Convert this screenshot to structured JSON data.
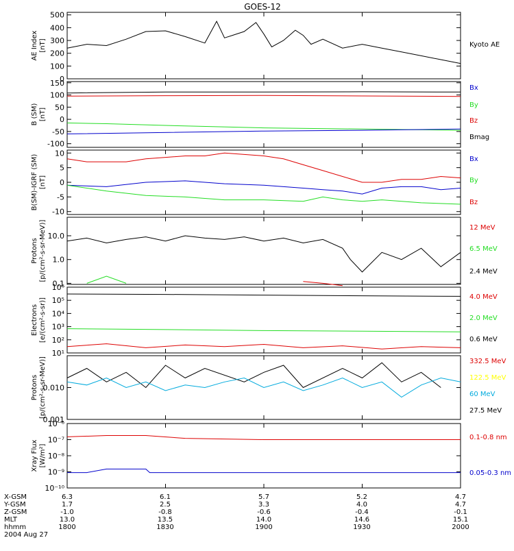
{
  "title": "GOES-12",
  "colors": {
    "black": "#000000",
    "red": "#dd0000",
    "green": "#22dd22",
    "blue": "#0000cc",
    "yellow": "#ffff00",
    "cyan": "#00aadd"
  },
  "x_axis": {
    "ticks": [
      "1800",
      "1830",
      "1900",
      "1930",
      "2000"
    ],
    "ephemeris": [
      {
        "label": "X-GSM",
        "values": [
          "6.3",
          "6.1",
          "5.7",
          "5.2",
          "4.7"
        ]
      },
      {
        "label": "Y-GSM",
        "values": [
          "1.7",
          "2.5",
          "3.3",
          "4.0",
          "4.7"
        ]
      },
      {
        "label": "Z-GSM",
        "values": [
          "-1.0",
          "-0.8",
          "-0.6",
          "-0.4",
          "-0.1"
        ]
      },
      {
        "label": "MLT",
        "values": [
          "13.0",
          "13.5",
          "14.0",
          "14.6",
          "15.1"
        ]
      },
      {
        "label": "hhmm",
        "values": [
          "1800",
          "1830",
          "1900",
          "1930",
          "2000"
        ]
      }
    ],
    "date": "2004 Aug 27"
  },
  "chart_data": [
    {
      "type": "line",
      "ylabel_lines": [
        "AE Index",
        "[nT]"
      ],
      "scale": "linear",
      "ylim": [
        0,
        520
      ],
      "yticks": [
        "0",
        "100",
        "200",
        "300",
        "400",
        "500"
      ],
      "ytick_values": [
        0,
        100,
        200,
        300,
        400,
        500
      ],
      "legend": [
        {
          "label": "Kyoto AE",
          "color": "#000000"
        }
      ],
      "series": [
        {
          "name": "Kyoto AE",
          "color": "#000000",
          "x": [
            0,
            0.05,
            0.1,
            0.15,
            0.2,
            0.25,
            0.3,
            0.35,
            0.38,
            0.4,
            0.42,
            0.45,
            0.48,
            0.5,
            0.52,
            0.55,
            0.58,
            0.6,
            0.62,
            0.65,
            0.7,
            0.75,
            0.8,
            0.85,
            0.9,
            0.95,
            1
          ],
          "y": [
            240,
            270,
            260,
            310,
            370,
            375,
            330,
            280,
            450,
            320,
            340,
            370,
            440,
            350,
            250,
            300,
            380,
            340,
            270,
            310,
            240,
            270,
            240,
            210,
            180,
            150,
            120
          ]
        }
      ]
    },
    {
      "type": "line",
      "ylabel_lines": [
        "B (SM)",
        "[nT]"
      ],
      "scale": "linear",
      "ylim": [
        -115,
        155
      ],
      "yticks": [
        "-100",
        "-50",
        "0",
        "50",
        "100",
        "150"
      ],
      "ytick_values": [
        -100,
        -50,
        0,
        50,
        100,
        150
      ],
      "legend": [
        {
          "label": "Bx",
          "color": "#0000cc"
        },
        {
          "label": "By",
          "color": "#22dd22"
        },
        {
          "label": "Bz",
          "color": "#dd0000"
        },
        {
          "label": "Bmag",
          "color": "#000000"
        }
      ],
      "series": [
        {
          "name": "Bmag",
          "color": "#000000",
          "x": [
            0,
            0.25,
            0.5,
            0.75,
            1
          ],
          "y": [
            108,
            112,
            112,
            113,
            112
          ]
        },
        {
          "name": "Bz",
          "color": "#dd0000",
          "x": [
            0,
            0.25,
            0.5,
            0.75,
            1
          ],
          "y": [
            95,
            97,
            98,
            96,
            94
          ]
        },
        {
          "name": "By",
          "color": "#22dd22",
          "x": [
            0,
            0.1,
            0.25,
            0.5,
            0.75,
            1
          ],
          "y": [
            -15,
            -18,
            -25,
            -35,
            -40,
            -45
          ]
        },
        {
          "name": "Bx",
          "color": "#0000cc",
          "x": [
            0,
            0.2,
            0.5,
            0.75,
            1
          ],
          "y": [
            -60,
            -55,
            -48,
            -45,
            -40
          ]
        }
      ]
    },
    {
      "type": "line",
      "ylabel_lines": [
        "B(SM)-IGRF (SM)",
        "[nT]"
      ],
      "scale": "linear",
      "ylim": [
        -11,
        11
      ],
      "yticks": [
        "-10",
        "-5",
        "0",
        "5",
        "10"
      ],
      "ytick_values": [
        -10,
        -5,
        0,
        5,
        10
      ],
      "legend": [
        {
          "label": "Bx",
          "color": "#0000cc"
        },
        {
          "label": "By",
          "color": "#22dd22"
        },
        {
          "label": "Bz",
          "color": "#dd0000"
        }
      ],
      "series": [
        {
          "name": "Bz",
          "color": "#dd0000",
          "x": [
            0,
            0.05,
            0.15,
            0.2,
            0.3,
            0.35,
            0.4,
            0.5,
            0.55,
            0.6,
            0.65,
            0.7,
            0.75,
            0.8,
            0.85,
            0.9,
            0.95,
            1
          ],
          "y": [
            8,
            7,
            7,
            8,
            9,
            9,
            10,
            9,
            8,
            6,
            4,
            2,
            0,
            0,
            1,
            1,
            2,
            1.5
          ]
        },
        {
          "name": "Bx",
          "color": "#0000cc",
          "x": [
            0,
            0.1,
            0.2,
            0.3,
            0.4,
            0.5,
            0.6,
            0.65,
            0.7,
            0.75,
            0.8,
            0.85,
            0.9,
            0.95,
            1
          ],
          "y": [
            -1,
            -1.5,
            0,
            0.5,
            -0.5,
            -1,
            -2,
            -2.5,
            -3,
            -4,
            -2,
            -1.5,
            -1.5,
            -2.5,
            -2
          ]
        },
        {
          "name": "By",
          "color": "#22dd22",
          "x": [
            0,
            0.05,
            0.1,
            0.2,
            0.3,
            0.4,
            0.5,
            0.6,
            0.65,
            0.7,
            0.75,
            0.8,
            0.9,
            1
          ],
          "y": [
            -1,
            -2,
            -3,
            -4.5,
            -5,
            -6,
            -6,
            -6.5,
            -5,
            -6,
            -6.5,
            -6,
            -7,
            -7.5
          ]
        }
      ]
    },
    {
      "type": "line",
      "ylabel_lines": [
        "Protons",
        "[p/(cm²-s-sr-MeV)]"
      ],
      "scale": "log",
      "ylim": [
        0.09,
        60
      ],
      "yticks": [
        "0.1",
        "1.0",
        "10.0"
      ],
      "ytick_values": [
        0.1,
        1,
        10
      ],
      "legend": [
        {
          "label": "12 MeV",
          "color": "#dd0000"
        },
        {
          "label": "6.5 MeV",
          "color": "#22dd22"
        },
        {
          "label": "2.4 MeV",
          "color": "#000000"
        }
      ],
      "series": [
        {
          "name": "2.4 MeV",
          "color": "#000000",
          "x": [
            0,
            0.05,
            0.1,
            0.15,
            0.2,
            0.25,
            0.3,
            0.35,
            0.4,
            0.45,
            0.5,
            0.55,
            0.6,
            0.65,
            0.7,
            0.72,
            0.75,
            0.8,
            0.85,
            0.9,
            0.95,
            1
          ],
          "y": [
            6,
            8,
            5,
            7,
            9,
            6,
            10,
            8,
            7,
            9,
            6,
            8,
            5,
            7,
            3,
            1,
            0.3,
            2,
            1,
            3,
            0.5,
            2
          ]
        },
        {
          "name": "6.5 MeV",
          "color": "#22dd22",
          "x": [
            0.05,
            0.1,
            0.15
          ],
          "y": [
            0.1,
            0.2,
            0.1
          ]
        },
        {
          "name": "12 MeV",
          "color": "#dd0000",
          "x": [
            0.6,
            0.65,
            0.7
          ],
          "y": [
            0.12,
            0.1,
            0.08
          ]
        }
      ]
    },
    {
      "type": "line",
      "ylabel_lines": [
        "Electrons",
        "[e/(cm²-s-sr)]"
      ],
      "scale": "log",
      "ylim": [
        10,
        1000000
      ],
      "yticks": [
        "10¹",
        "10²",
        "10³",
        "10⁴",
        "10⁵",
        "10⁶"
      ],
      "ytick_values": [
        10,
        100,
        1000,
        10000,
        100000,
        1000000
      ],
      "legend": [
        {
          "label": "4.0 MeV",
          "color": "#dd0000"
        },
        {
          "label": "2.0 MeV",
          "color": "#22dd22"
        },
        {
          "label": "0.6 MeV",
          "color": "#000000"
        }
      ],
      "series": [
        {
          "name": "0.6 MeV",
          "color": "#000000",
          "x": [
            0,
            0.25,
            0.5,
            0.75,
            1
          ],
          "y": [
            300000,
            280000,
            250000,
            220000,
            200000
          ]
        },
        {
          "name": "2.0 MeV",
          "color": "#22dd22",
          "x": [
            0,
            0.25,
            0.5,
            0.75,
            1
          ],
          "y": [
            700,
            600,
            500,
            450,
            400
          ]
        },
        {
          "name": "4.0 MeV",
          "color": "#dd0000",
          "x": [
            0,
            0.1,
            0.2,
            0.3,
            0.4,
            0.5,
            0.6,
            0.7,
            0.8,
            0.9,
            1
          ],
          "y": [
            30,
            50,
            25,
            40,
            30,
            45,
            25,
            35,
            20,
            30,
            25
          ]
        }
      ]
    },
    {
      "type": "line",
      "ylabel_lines": [
        "Protons",
        "[p/(cm²-s-sr-MeV)]"
      ],
      "scale": "log",
      "ylim": [
        0.001,
        0.1
      ],
      "yticks": [
        "0.001",
        "0.010"
      ],
      "ytick_values": [
        0.001,
        0.01
      ],
      "legend": [
        {
          "label": "332.5 MeV",
          "color": "#dd0000"
        },
        {
          "label": "122.5 MeV",
          "color": "#ffff00"
        },
        {
          "label": "60 MeV",
          "color": "#00aadd"
        },
        {
          "label": "27.5 MeV",
          "color": "#000000"
        }
      ],
      "series": [
        {
          "name": "27.5 MeV",
          "color": "#000000",
          "x": [
            0,
            0.05,
            0.1,
            0.15,
            0.2,
            0.25,
            0.3,
            0.35,
            0.45,
            0.5,
            0.55,
            0.6,
            0.7,
            0.75,
            0.8,
            0.85,
            0.9,
            0.95
          ],
          "y": [
            0.02,
            0.04,
            0.015,
            0.03,
            0.01,
            0.05,
            0.02,
            0.04,
            0.015,
            0.03,
            0.05,
            0.01,
            0.04,
            0.02,
            0.06,
            0.015,
            0.03,
            0.01
          ]
        },
        {
          "name": "60 MeV",
          "color": "#00aadd",
          "x": [
            0,
            0.05,
            0.1,
            0.15,
            0.2,
            0.25,
            0.3,
            0.35,
            0.4,
            0.45,
            0.5,
            0.55,
            0.6,
            0.65,
            0.7,
            0.75,
            0.8,
            0.85,
            0.9,
            0.95,
            1
          ],
          "y": [
            0.015,
            0.012,
            0.02,
            0.01,
            0.015,
            0.008,
            0.012,
            0.01,
            0.015,
            0.02,
            0.01,
            0.015,
            0.008,
            0.012,
            0.02,
            0.01,
            0.015,
            0.005,
            0.012,
            0.02,
            0.015
          ]
        }
      ]
    },
    {
      "type": "line",
      "ylabel_lines": [
        "Xray Flux",
        "[W/m²]"
      ],
      "scale": "log",
      "ylim": [
        1e-10,
        1e-06
      ],
      "yticks": [
        "10⁻¹⁰",
        "10⁻⁹",
        "10⁻⁸",
        "10⁻⁷",
        "10⁻⁶"
      ],
      "ytick_values": [
        1e-10,
        1e-09,
        1e-08,
        1e-07,
        1e-06
      ],
      "legend": [
        {
          "label": "0.1-0.8 nm",
          "color": "#dd0000"
        },
        {
          "label": "0.05-0.3 nm",
          "color": "#0000cc"
        }
      ],
      "series": [
        {
          "name": "0.1-0.8 nm",
          "color": "#dd0000",
          "x": [
            0,
            0.1,
            0.2,
            0.3,
            0.5,
            0.75,
            1
          ],
          "y": [
            1.5e-07,
            1.8e-07,
            1.8e-07,
            1.2e-07,
            1e-07,
            1e-07,
            1e-07
          ]
        },
        {
          "name": "0.05-0.3 nm",
          "color": "#0000cc",
          "x": [
            0,
            0.05,
            0.1,
            0.2,
            0.21,
            0.5,
            1
          ],
          "y": [
            9e-10,
            9e-10,
            1.5e-09,
            1.5e-09,
            9e-10,
            9e-10,
            9e-10
          ]
        }
      ]
    }
  ]
}
